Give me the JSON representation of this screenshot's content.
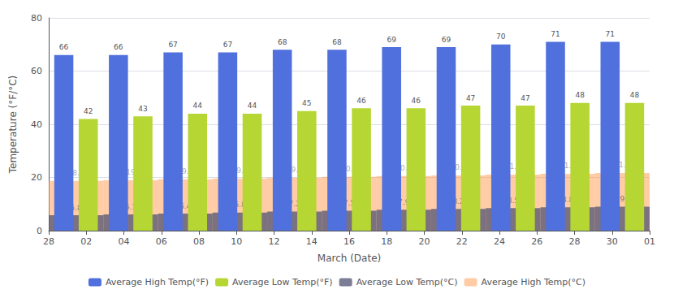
{
  "chart_data": {
    "type": "bar",
    "categories": [
      null,
      null,
      null,
      null,
      null,
      null,
      null,
      null,
      null,
      null,
      null
    ],
    "xticks": [
      "28",
      "02",
      "04",
      "06",
      "08",
      "10",
      "12",
      "14",
      "16",
      "18",
      "20",
      "22",
      "24",
      "26",
      "28",
      "30",
      "01"
    ],
    "xlabel": "March (Date)",
    "ylabel": "Temperature (°F/°C)",
    "series": [
      {
        "name": "Average High Temp(°F)",
        "values": [
          66,
          66,
          67,
          67,
          68,
          68,
          69,
          69,
          70,
          71,
          71
        ]
      },
      {
        "name": "Average Low Temp(°F)",
        "values": [
          42,
          43,
          44,
          44,
          45,
          46,
          46,
          47,
          47,
          48,
          48
        ]
      },
      {
        "name": "Average Low Temp(°C)",
        "values": [
          5.8,
          6.1,
          6.4,
          6.8,
          7.2,
          7.5,
          7.9,
          8.2,
          8.5,
          8.8,
          9.0
        ]
      },
      {
        "name": "Average High Temp(°C)",
        "values": [
          18.7,
          19.0,
          19.3,
          19.6,
          19.9,
          20.2,
          20.5,
          20.8,
          21.1,
          21.4,
          21.7
        ]
      }
    ],
    "ylim": [
      0,
      80
    ],
    "yticks": [
      0,
      20,
      40,
      60,
      80
    ],
    "grid": true,
    "legend": "bottom",
    "data_labels": true
  }
}
